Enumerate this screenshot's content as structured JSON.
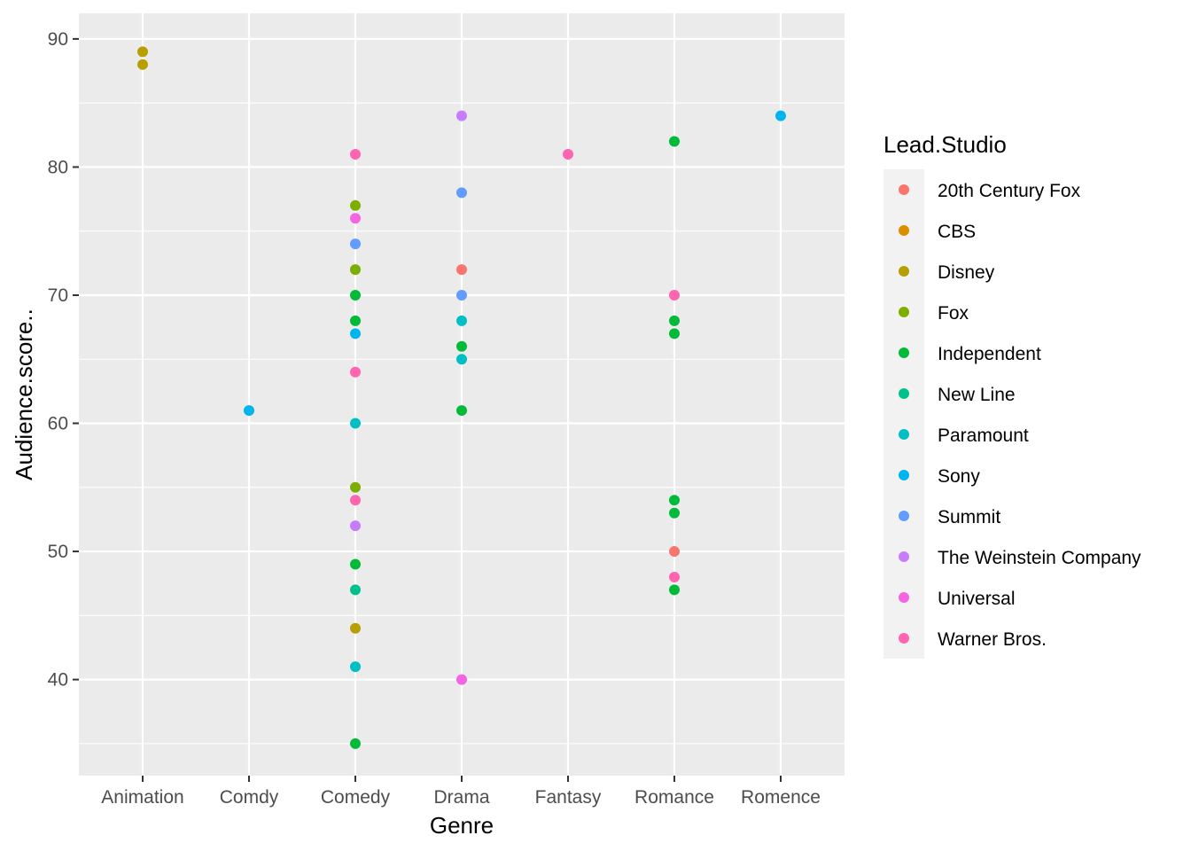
{
  "chart_data": {
    "type": "scatter",
    "xlabel": "Genre",
    "ylabel": "Audience.score..",
    "categories": [
      "Animation",
      "Comdy",
      "Comedy",
      "Drama",
      "Fantasy",
      "Romance",
      "Romence"
    ],
    "ylim": [
      32.5,
      92
    ],
    "yticks": [
      40,
      50,
      60,
      70,
      80,
      90
    ],
    "grid": true,
    "legend": {
      "title": "Lead.Studio",
      "placement": "right",
      "entries": [
        {
          "name": "20th Century Fox",
          "color": "#F8766D"
        },
        {
          "name": "CBS",
          "color": "#DE8C00"
        },
        {
          "name": "Disney",
          "color": "#B79F00"
        },
        {
          "name": "Fox",
          "color": "#7CAE00"
        },
        {
          "name": "Independent",
          "color": "#00BA38"
        },
        {
          "name": "New Line",
          "color": "#00C08B"
        },
        {
          "name": "Paramount",
          "color": "#00BFC4"
        },
        {
          "name": "Sony",
          "color": "#00B4F0"
        },
        {
          "name": "Summit",
          "color": "#619CFF"
        },
        {
          "name": "The Weinstein Company",
          "color": "#C77CFF"
        },
        {
          "name": "Universal",
          "color": "#F564E3"
        },
        {
          "name": "Warner Bros.",
          "color": "#FF64B0"
        }
      ]
    },
    "points": [
      {
        "x": "Animation",
        "y": 89,
        "studio": "Disney"
      },
      {
        "x": "Animation",
        "y": 88,
        "studio": "Disney"
      },
      {
        "x": "Comdy",
        "y": 61,
        "studio": "Sony"
      },
      {
        "x": "Comedy",
        "y": 81,
        "studio": "Warner Bros."
      },
      {
        "x": "Comedy",
        "y": 77,
        "studio": "Fox"
      },
      {
        "x": "Comedy",
        "y": 76,
        "studio": "Universal"
      },
      {
        "x": "Comedy",
        "y": 74,
        "studio": "Summit"
      },
      {
        "x": "Comedy",
        "y": 72,
        "studio": "Fox"
      },
      {
        "x": "Comedy",
        "y": 70,
        "studio": "Independent"
      },
      {
        "x": "Comedy",
        "y": 68,
        "studio": "Independent"
      },
      {
        "x": "Comedy",
        "y": 67,
        "studio": "Sony"
      },
      {
        "x": "Comedy",
        "y": 64,
        "studio": "Warner Bros."
      },
      {
        "x": "Comedy",
        "y": 60,
        "studio": "Paramount"
      },
      {
        "x": "Comedy",
        "y": 55,
        "studio": "Fox"
      },
      {
        "x": "Comedy",
        "y": 54,
        "studio": "Warner Bros."
      },
      {
        "x": "Comedy",
        "y": 52,
        "studio": "The Weinstein Company"
      },
      {
        "x": "Comedy",
        "y": 49,
        "studio": "Independent"
      },
      {
        "x": "Comedy",
        "y": 47,
        "studio": "New Line"
      },
      {
        "x": "Comedy",
        "y": 44,
        "studio": "Disney"
      },
      {
        "x": "Comedy",
        "y": 41,
        "studio": "Paramount"
      },
      {
        "x": "Comedy",
        "y": 35,
        "studio": "Independent"
      },
      {
        "x": "Drama",
        "y": 84,
        "studio": "The Weinstein Company"
      },
      {
        "x": "Drama",
        "y": 78,
        "studio": "Summit"
      },
      {
        "x": "Drama",
        "y": 72,
        "studio": "20th Century Fox"
      },
      {
        "x": "Drama",
        "y": 70,
        "studio": "Summit"
      },
      {
        "x": "Drama",
        "y": 68,
        "studio": "Paramount"
      },
      {
        "x": "Drama",
        "y": 66,
        "studio": "Independent"
      },
      {
        "x": "Drama",
        "y": 65,
        "studio": "Paramount"
      },
      {
        "x": "Drama",
        "y": 61,
        "studio": "Independent"
      },
      {
        "x": "Drama",
        "y": 40,
        "studio": "Universal"
      },
      {
        "x": "Fantasy",
        "y": 81,
        "studio": "Warner Bros."
      },
      {
        "x": "Romance",
        "y": 82,
        "studio": "Independent"
      },
      {
        "x": "Romance",
        "y": 70,
        "studio": "Warner Bros."
      },
      {
        "x": "Romance",
        "y": 68,
        "studio": "Independent"
      },
      {
        "x": "Romance",
        "y": 67,
        "studio": "Independent"
      },
      {
        "x": "Romance",
        "y": 54,
        "studio": "Independent"
      },
      {
        "x": "Romance",
        "y": 53,
        "studio": "Independent"
      },
      {
        "x": "Romance",
        "y": 50,
        "studio": "20th Century Fox"
      },
      {
        "x": "Romance",
        "y": 48,
        "studio": "Warner Bros."
      },
      {
        "x": "Romance",
        "y": 47,
        "studio": "Independent"
      },
      {
        "x": "Romence",
        "y": 84,
        "studio": "Sony"
      }
    ]
  }
}
